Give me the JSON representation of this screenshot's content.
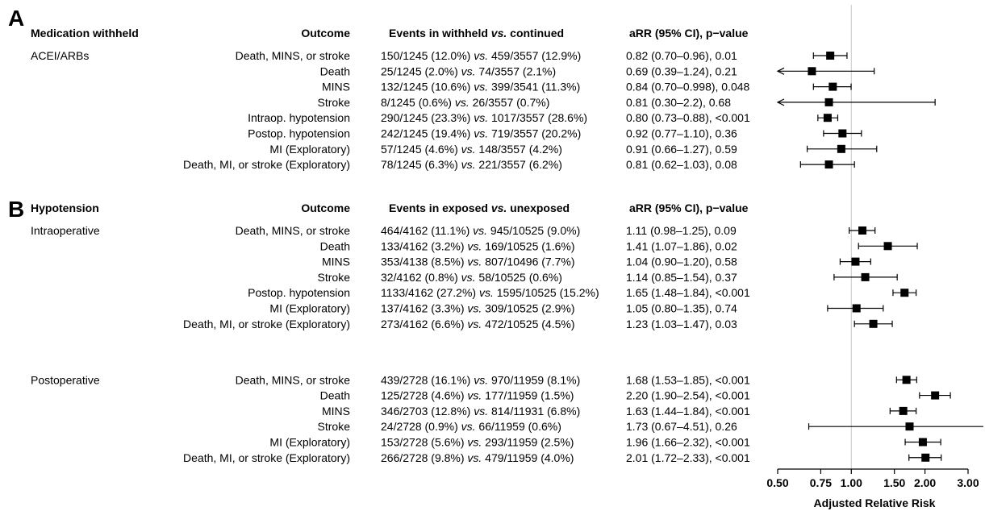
{
  "chart_data": {
    "type": "forest",
    "x_scale": "log",
    "reference_line": 1.0,
    "xlim": [
      0.5,
      3.0
    ],
    "xticks": [
      "0.50",
      "0.75",
      "1.00",
      "1.50",
      "2.00",
      "3.00"
    ],
    "xlabel": "Adjusted Relative Risk",
    "panels": [
      {
        "letter": "A",
        "headers": {
          "group": "Medication withheld",
          "outcome": "Outcome",
          "events": [
            "Events in withheld ",
            "vs.",
            " continued"
          ],
          "arr": "aRR (95% CI), p−value"
        },
        "groups": [
          {
            "name": "ACEI/ARBs",
            "rows": [
              {
                "outcome": "Death, MINS, or stroke",
                "events": [
                  "150/1245 (12.0%) ",
                  "vs.",
                  " 459/3557 (12.9%)"
                ],
                "arr_text": "0.82 (0.70–0.96), 0.01",
                "est": 0.82,
                "lo": 0.7,
                "hi": 0.96
              },
              {
                "outcome": "Death",
                "events": [
                  "25/1245 (2.0%) ",
                  "vs.",
                  " 74/3557 (2.1%)"
                ],
                "arr_text": "0.69 (0.39–1.24), 0.21",
                "est": 0.69,
                "lo": 0.39,
                "hi": 1.24
              },
              {
                "outcome": "MINS",
                "events": [
                  "132/1245 (10.6%) ",
                  "vs.",
                  " 399/3541 (11.3%)"
                ],
                "arr_text": "0.84 (0.70–0.998), 0.048",
                "est": 0.84,
                "lo": 0.7,
                "hi": 0.998
              },
              {
                "outcome": "Stroke",
                "events": [
                  "8/1245 (0.6%) ",
                  "vs.",
                  " 26/3557 (0.7%)"
                ],
                "arr_text": "0.81 (0.30–2.2), 0.68",
                "est": 0.81,
                "lo": 0.3,
                "hi": 2.2
              },
              {
                "outcome": "Intraop. hypotension",
                "events": [
                  "290/1245 (23.3%) ",
                  "vs.",
                  " 1017/3557 (28.6%)"
                ],
                "arr_text": "0.80 (0.73–0.88), <0.001",
                "est": 0.8,
                "lo": 0.73,
                "hi": 0.88
              },
              {
                "outcome": "Postop. hypotension",
                "events": [
                  "242/1245 (19.4%) ",
                  "vs.",
                  " 719/3557 (20.2%)"
                ],
                "arr_text": "0.92 (0.77–1.10), 0.36",
                "est": 0.92,
                "lo": 0.77,
                "hi": 1.1
              },
              {
                "outcome": "MI (Exploratory)",
                "events": [
                  "57/1245 (4.6%) ",
                  "vs.",
                  " 148/3557 (4.2%)"
                ],
                "arr_text": "0.91 (0.66–1.27), 0.59",
                "est": 0.91,
                "lo": 0.66,
                "hi": 1.27
              },
              {
                "outcome": "Death, MI, or stroke (Exploratory)",
                "events": [
                  "78/1245 (6.3%) ",
                  "vs.",
                  " 221/3557 (6.2%)"
                ],
                "arr_text": "0.81 (0.62–1.03), 0.08",
                "est": 0.81,
                "lo": 0.62,
                "hi": 1.03
              }
            ]
          }
        ]
      },
      {
        "letter": "B",
        "headers": {
          "group": "Hypotension",
          "outcome": "Outcome",
          "events": [
            "Events in exposed ",
            "vs.",
            " unexposed"
          ],
          "arr": "aRR (95% CI), p−value"
        },
        "groups": [
          {
            "name": "Intraoperative",
            "rows": [
              {
                "outcome": "Death, MINS, or stroke",
                "events": [
                  "464/4162 (11.1%) ",
                  "vs.",
                  " 945/10525 (9.0%)"
                ],
                "arr_text": "1.11 (0.98–1.25), 0.09",
                "est": 1.11,
                "lo": 0.98,
                "hi": 1.25
              },
              {
                "outcome": "Death",
                "events": [
                  "133/4162 (3.2%) ",
                  "vs.",
                  " 169/10525 (1.6%)"
                ],
                "arr_text": "1.41 (1.07–1.86), 0.02",
                "est": 1.41,
                "lo": 1.07,
                "hi": 1.86
              },
              {
                "outcome": "MINS",
                "events": [
                  "353/4138 (8.5%) ",
                  "vs.",
                  " 807/10496 (7.7%)"
                ],
                "arr_text": "1.04 (0.90–1.20), 0.58",
                "est": 1.04,
                "lo": 0.9,
                "hi": 1.2
              },
              {
                "outcome": "Stroke",
                "events": [
                  "32/4162 (0.8%) ",
                  "vs.",
                  " 58/10525 (0.6%)"
                ],
                "arr_text": "1.14 (0.85–1.54), 0.37",
                "est": 1.14,
                "lo": 0.85,
                "hi": 1.54
              },
              {
                "outcome": "Postop. hypotension",
                "events": [
                  "1133/4162 (27.2%) ",
                  "vs.",
                  " 1595/10525 (15.2%)"
                ],
                "arr_text": "1.65 (1.48–1.84), <0.001",
                "est": 1.65,
                "lo": 1.48,
                "hi": 1.84
              },
              {
                "outcome": "MI (Exploratory)",
                "events": [
                  "137/4162 (3.3%) ",
                  "vs.",
                  " 309/10525 (2.9%)"
                ],
                "arr_text": "1.05 (0.80–1.35), 0.74",
                "est": 1.05,
                "lo": 0.8,
                "hi": 1.35
              },
              {
                "outcome": "Death, MI, or stroke (Exploratory)",
                "events": [
                  "273/4162 (6.6%) ",
                  "vs.",
                  " 472/10525 (4.5%)"
                ],
                "arr_text": "1.23 (1.03–1.47), 0.03",
                "est": 1.23,
                "lo": 1.03,
                "hi": 1.47
              }
            ]
          },
          {
            "name": "Postoperative",
            "rows": [
              {
                "outcome": "Death, MINS, or stroke",
                "events": [
                  "439/2728 (16.1%) ",
                  "vs.",
                  " 970/11959 (8.1%)"
                ],
                "arr_text": "1.68 (1.53–1.85), <0.001",
                "est": 1.68,
                "lo": 1.53,
                "hi": 1.85
              },
              {
                "outcome": "Death",
                "events": [
                  "125/2728 (4.6%) ",
                  "vs.",
                  " 177/11959 (1.5%)"
                ],
                "arr_text": "2.20 (1.90–2.54), <0.001",
                "est": 2.2,
                "lo": 1.9,
                "hi": 2.54
              },
              {
                "outcome": "MINS",
                "events": [
                  "346/2703 (12.8%) ",
                  "vs.",
                  " 814/11931 (6.8%)"
                ],
                "arr_text": "1.63 (1.44–1.84), <0.001",
                "est": 1.63,
                "lo": 1.44,
                "hi": 1.84
              },
              {
                "outcome": "Stroke",
                "events": [
                  "24/2728 (0.9%) ",
                  "vs.",
                  " 66/11959 (0.6%)"
                ],
                "arr_text": "1.73 (0.67–4.51), 0.26",
                "est": 1.73,
                "lo": 0.67,
                "hi": 4.51
              },
              {
                "outcome": "MI (Exploratory)",
                "events": [
                  "153/2728 (5.6%) ",
                  "vs.",
                  " 293/11959 (2.5%)"
                ],
                "arr_text": "1.96 (1.66–2.32), <0.001",
                "est": 1.96,
                "lo": 1.66,
                "hi": 2.32
              },
              {
                "outcome": "Death, MI, or stroke (Exploratory)",
                "events": [
                  "266/2728 (9.8%) ",
                  "vs.",
                  " 479/11959 (4.0%)"
                ],
                "arr_text": "2.01 (1.72–2.33), <0.001",
                "est": 2.01,
                "lo": 1.72,
                "hi": 2.33
              }
            ]
          }
        ]
      }
    ]
  }
}
